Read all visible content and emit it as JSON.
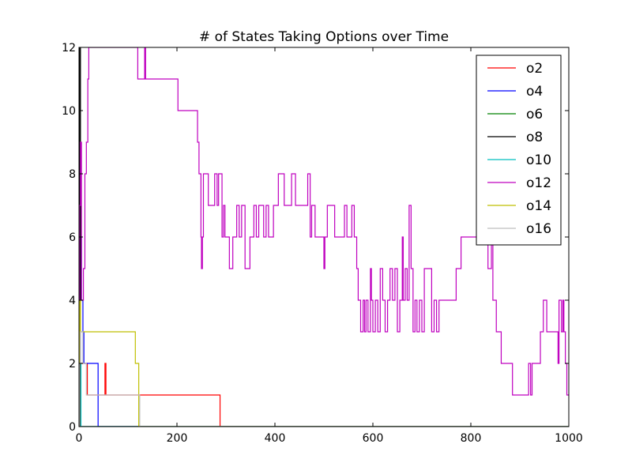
{
  "chart_data": {
    "type": "line",
    "title": "# of States Taking Options over Time",
    "xlabel": "",
    "ylabel": "",
    "xlim": [
      0,
      1000
    ],
    "ylim": [
      0,
      12
    ],
    "xticks": [
      0,
      200,
      400,
      600,
      800,
      1000
    ],
    "yticks": [
      0,
      2,
      4,
      6,
      8,
      10,
      12
    ],
    "grid": false,
    "legend_position": "top-right",
    "series": [
      {
        "name": "o2",
        "color": "#ff0000",
        "step": true,
        "points": [
          [
            0,
            0
          ],
          [
            1,
            2
          ],
          [
            15,
            2
          ],
          [
            17,
            1
          ],
          [
            52,
            1
          ],
          [
            53,
            2
          ],
          [
            55,
            1
          ],
          [
            287,
            1
          ],
          [
            288,
            0
          ],
          [
            1000,
            0
          ]
        ]
      },
      {
        "name": "o4",
        "color": "#0000ff",
        "step": true,
        "points": [
          [
            0,
            0
          ],
          [
            2,
            6
          ],
          [
            5,
            4
          ],
          [
            8,
            3
          ],
          [
            10,
            2
          ],
          [
            38,
            2
          ],
          [
            39,
            0
          ],
          [
            1000,
            0
          ]
        ]
      },
      {
        "name": "o6",
        "color": "#008000",
        "step": true,
        "points": [
          [
            0,
            0
          ],
          [
            1,
            3
          ],
          [
            3,
            0
          ],
          [
            1000,
            0
          ]
        ]
      },
      {
        "name": "o8",
        "color": "#000000",
        "step": true,
        "points": [
          [
            0,
            0
          ],
          [
            1,
            12
          ],
          [
            3,
            0
          ],
          [
            1000,
            0
          ]
        ]
      },
      {
        "name": "o10",
        "color": "#00bfbf",
        "step": true,
        "points": [
          [
            0,
            0
          ],
          [
            1,
            4
          ],
          [
            2,
            2
          ],
          [
            4,
            0
          ],
          [
            1000,
            0
          ]
        ]
      },
      {
        "name": "o12",
        "color": "#bf00bf",
        "step": true,
        "points": [
          [
            0,
            0
          ],
          [
            1,
            7
          ],
          [
            3,
            9
          ],
          [
            5,
            4
          ],
          [
            9,
            5
          ],
          [
            12,
            8
          ],
          [
            15,
            9
          ],
          [
            18,
            11
          ],
          [
            20,
            12
          ],
          [
            118,
            12
          ],
          [
            120,
            11
          ],
          [
            132,
            11
          ],
          [
            134,
            12
          ],
          [
            136,
            11
          ],
          [
            200,
            11
          ],
          [
            202,
            10
          ],
          [
            240,
            10
          ],
          [
            242,
            9
          ],
          [
            245,
            8
          ],
          [
            249,
            6
          ],
          [
            250,
            5
          ],
          [
            252,
            6
          ],
          [
            254,
            8
          ],
          [
            262,
            8
          ],
          [
            264,
            7
          ],
          [
            275,
            7
          ],
          [
            277,
            8
          ],
          [
            280,
            8
          ],
          [
            282,
            7
          ],
          [
            285,
            8
          ],
          [
            290,
            8
          ],
          [
            292,
            6
          ],
          [
            295,
            7
          ],
          [
            298,
            6
          ],
          [
            305,
            6
          ],
          [
            307,
            5
          ],
          [
            312,
            5
          ],
          [
            314,
            6
          ],
          [
            320,
            6
          ],
          [
            322,
            7
          ],
          [
            325,
            7
          ],
          [
            327,
            6
          ],
          [
            330,
            6
          ],
          [
            332,
            7
          ],
          [
            337,
            7
          ],
          [
            339,
            5
          ],
          [
            347,
            5
          ],
          [
            349,
            6
          ],
          [
            355,
            6
          ],
          [
            357,
            7
          ],
          [
            360,
            7
          ],
          [
            362,
            6
          ],
          [
            365,
            6
          ],
          [
            367,
            7
          ],
          [
            375,
            7
          ],
          [
            377,
            6
          ],
          [
            380,
            6
          ],
          [
            382,
            7
          ],
          [
            385,
            7
          ],
          [
            387,
            6
          ],
          [
            395,
            6
          ],
          [
            397,
            7
          ],
          [
            405,
            7
          ],
          [
            407,
            8
          ],
          [
            417,
            8
          ],
          [
            419,
            7
          ],
          [
            432,
            7
          ],
          [
            434,
            8
          ],
          [
            440,
            8
          ],
          [
            442,
            7
          ],
          [
            465,
            7
          ],
          [
            467,
            8
          ],
          [
            470,
            8
          ],
          [
            472,
            6
          ],
          [
            475,
            7
          ],
          [
            480,
            7
          ],
          [
            482,
            6
          ],
          [
            498,
            6
          ],
          [
            500,
            5
          ],
          [
            502,
            6
          ],
          [
            505,
            6
          ],
          [
            507,
            7
          ],
          [
            520,
            7
          ],
          [
            522,
            6
          ],
          [
            540,
            6
          ],
          [
            542,
            7
          ],
          [
            545,
            7
          ],
          [
            547,
            6
          ],
          [
            555,
            6
          ],
          [
            557,
            7
          ],
          [
            560,
            7
          ],
          [
            562,
            6
          ],
          [
            565,
            6
          ],
          [
            567,
            5
          ],
          [
            570,
            4
          ],
          [
            575,
            3
          ],
          [
            580,
            4
          ],
          [
            583,
            3
          ],
          [
            586,
            4
          ],
          [
            590,
            3
          ],
          [
            595,
            5
          ],
          [
            597,
            4
          ],
          [
            600,
            3
          ],
          [
            605,
            4
          ],
          [
            610,
            3
          ],
          [
            615,
            5
          ],
          [
            620,
            4
          ],
          [
            625,
            3
          ],
          [
            630,
            4
          ],
          [
            635,
            5
          ],
          [
            640,
            4
          ],
          [
            645,
            5
          ],
          [
            650,
            3
          ],
          [
            655,
            4
          ],
          [
            660,
            6
          ],
          [
            662,
            4
          ],
          [
            666,
            5
          ],
          [
            670,
            4
          ],
          [
            674,
            7
          ],
          [
            678,
            5
          ],
          [
            682,
            3
          ],
          [
            686,
            4
          ],
          [
            690,
            3
          ],
          [
            695,
            4
          ],
          [
            700,
            3
          ],
          [
            705,
            5
          ],
          [
            715,
            5
          ],
          [
            720,
            3
          ],
          [
            725,
            4
          ],
          [
            730,
            3
          ],
          [
            735,
            4
          ],
          [
            760,
            4
          ],
          [
            765,
            4
          ],
          [
            770,
            5
          ],
          [
            780,
            6
          ],
          [
            790,
            6
          ],
          [
            800,
            6
          ],
          [
            810,
            6
          ],
          [
            820,
            6
          ],
          [
            830,
            6
          ],
          [
            835,
            5
          ],
          [
            840,
            5
          ],
          [
            842,
            6
          ],
          [
            845,
            4
          ],
          [
            850,
            4
          ],
          [
            852,
            3
          ],
          [
            860,
            3
          ],
          [
            862,
            2
          ],
          [
            870,
            2
          ],
          [
            880,
            2
          ],
          [
            885,
            1
          ],
          [
            900,
            1
          ],
          [
            910,
            1
          ],
          [
            918,
            2
          ],
          [
            922,
            1
          ],
          [
            925,
            2
          ],
          [
            940,
            2
          ],
          [
            942,
            3
          ],
          [
            948,
            4
          ],
          [
            955,
            3
          ],
          [
            965,
            3
          ],
          [
            970,
            3
          ],
          [
            978,
            2
          ],
          [
            980,
            4
          ],
          [
            985,
            3
          ],
          [
            988,
            4
          ],
          [
            990,
            3
          ],
          [
            993,
            2
          ],
          [
            996,
            1
          ],
          [
            1000,
            1
          ]
        ]
      },
      {
        "name": "o14",
        "color": "#bfbf00",
        "step": true,
        "points": [
          [
            0,
            0
          ],
          [
            1,
            4
          ],
          [
            3,
            3
          ],
          [
            110,
            3
          ],
          [
            115,
            2
          ],
          [
            120,
            2
          ],
          [
            122,
            0
          ],
          [
            1000,
            0
          ]
        ]
      },
      {
        "name": "o16",
        "color": "#bfbfbf",
        "step": true,
        "points": [
          [
            0,
            0
          ],
          [
            1,
            2
          ],
          [
            3,
            3
          ],
          [
            8,
            2
          ],
          [
            15,
            1
          ],
          [
            122,
            1
          ],
          [
            124,
            0
          ],
          [
            1000,
            0
          ]
        ]
      }
    ]
  }
}
